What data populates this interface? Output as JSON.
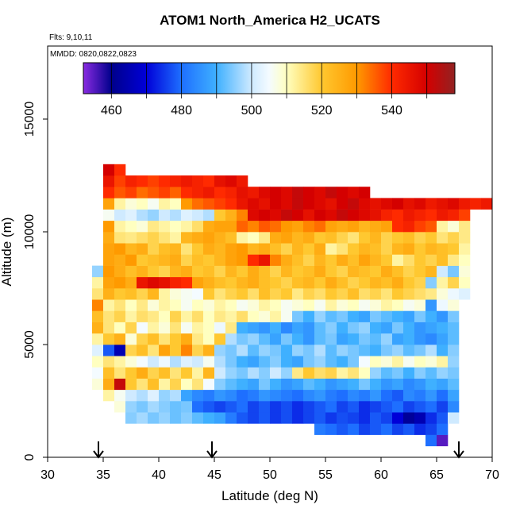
{
  "chart_data": {
    "type": "heatmap",
    "title": "ATOM1 North_America H2_UCATS",
    "annotations": [
      "Flts: 9,10,11",
      "MMDD: 0820,0822,0823"
    ],
    "x_label": "Latitude (deg N)",
    "y_label": "Altitude (m)",
    "xlim": [
      30,
      70
    ],
    "ylim": [
      0,
      18240
    ],
    "xticks": [
      30,
      35,
      40,
      45,
      50,
      55,
      60,
      65,
      70
    ],
    "yticks": [
      0,
      5000,
      10000,
      15000
    ],
    "xbins": [
      34,
      35,
      36,
      37,
      38,
      39,
      40,
      41,
      42,
      43,
      44,
      45,
      46,
      47,
      48,
      49,
      50,
      51,
      52,
      53,
      54,
      55,
      56,
      57,
      58,
      59,
      60,
      61,
      62,
      63,
      64,
      65,
      66,
      67,
      68,
      69,
      70
    ],
    "ybins": [
      500,
      1000,
      1500,
      2000,
      2500,
      3000,
      3500,
      4000,
      4500,
      5000,
      5500,
      6000,
      6500,
      7000,
      7500,
      8000,
      8500,
      9000,
      9500,
      10000,
      10500,
      11000,
      11500,
      12000,
      12500,
      13000
    ],
    "values": [
      [
        null,
        null,
        null,
        null,
        null,
        null,
        null,
        null,
        null,
        null,
        null,
        null,
        null,
        null,
        null,
        null,
        null,
        null,
        null,
        null,
        null,
        null,
        null,
        null,
        null,
        null,
        null,
        null,
        null,
        null,
        480,
        455,
        null,
        null,
        null,
        null
      ],
      [
        null,
        null,
        null,
        null,
        null,
        null,
        null,
        null,
        null,
        null,
        null,
        null,
        null,
        null,
        null,
        null,
        null,
        null,
        null,
        null,
        482,
        480,
        478,
        480,
        476,
        478,
        480,
        476,
        478,
        474,
        476,
        480,
        null,
        null,
        null,
        null
      ],
      [
        null,
        null,
        null,
        495,
        497,
        494,
        496,
        493,
        495,
        492,
        490,
        488,
        482,
        478,
        476,
        478,
        475,
        477,
        474,
        476,
        478,
        475,
        477,
        476,
        474,
        478,
        476,
        470,
        462,
        465,
        474,
        478,
        500,
        null,
        null,
        null
      ],
      [
        null,
        null,
        508,
        496,
        494,
        497,
        495,
        493,
        494,
        480,
        478,
        476,
        478,
        480,
        476,
        478,
        475,
        477,
        474,
        476,
        478,
        480,
        476,
        478,
        474,
        476,
        478,
        480,
        476,
        478,
        480,
        476,
        484,
        null,
        null,
        null
      ],
      [
        null,
        512,
        506,
        500,
        498,
        502,
        496,
        498,
        488,
        484,
        482,
        486,
        484,
        480,
        482,
        486,
        484,
        482,
        480,
        484,
        486,
        482,
        480,
        484,
        482,
        486,
        480,
        478,
        484,
        482,
        486,
        480,
        488,
        null,
        null,
        null
      ],
      [
        508,
        526,
        552,
        520,
        515,
        522,
        512,
        518,
        510,
        515,
        505,
        495,
        492,
        490,
        488,
        494,
        490,
        486,
        488,
        492,
        490,
        486,
        488,
        490,
        494,
        490,
        486,
        488,
        484,
        486,
        490,
        488,
        492,
        null,
        null,
        null
      ],
      [
        505,
        522,
        515,
        520,
        526,
        518,
        522,
        515,
        520,
        512,
        524,
        500,
        496,
        494,
        498,
        495,
        500,
        496,
        514,
        520,
        516,
        518,
        512,
        515,
        510,
        496,
        492,
        494,
        490,
        495,
        492,
        496,
        494,
        null,
        null,
        null
      ],
      [
        510,
        515,
        512,
        508,
        505,
        500,
        504,
        498,
        502,
        500,
        506,
        498,
        494,
        490,
        488,
        492,
        495,
        490,
        488,
        494,
        496,
        492,
        490,
        494,
        505,
        510,
        508,
        512,
        506,
        510,
        508,
        512,
        496,
        null,
        null,
        null
      ],
      [
        502,
        478,
        465,
        518,
        522,
        515,
        528,
        520,
        532,
        518,
        525,
        496,
        494,
        498,
        492,
        496,
        494,
        490,
        496,
        494,
        498,
        492,
        496,
        494,
        492,
        490,
        494,
        496,
        492,
        494,
        498,
        490,
        495,
        null,
        null,
        null
      ],
      [
        512,
        520,
        525,
        508,
        518,
        522,
        515,
        520,
        526,
        514,
        510,
        520,
        498,
        494,
        496,
        492,
        488,
        494,
        490,
        486,
        492,
        494,
        488,
        490,
        494,
        492,
        496,
        488,
        490,
        486,
        484,
        488,
        492,
        null,
        null,
        null
      ],
      [
        525,
        515,
        510,
        518,
        505,
        512,
        508,
        515,
        506,
        512,
        510,
        504,
        514,
        490,
        488,
        486,
        490,
        484,
        488,
        486,
        492,
        495,
        490,
        494,
        496,
        490,
        488,
        494,
        490,
        486,
        488,
        490,
        492,
        null,
        null,
        null
      ],
      [
        522,
        515,
        518,
        512,
        516,
        514,
        510,
        518,
        512,
        516,
        510,
        514,
        512,
        516,
        510,
        508,
        512,
        506,
        494,
        490,
        496,
        492,
        494,
        490,
        488,
        494,
        492,
        490,
        488,
        494,
        490,
        486,
        494,
        null,
        null,
        null
      ],
      [
        532,
        512,
        515,
        510,
        514,
        508,
        512,
        510,
        506,
        510,
        508,
        512,
        510,
        506,
        508,
        512,
        510,
        506,
        508,
        510,
        506,
        512,
        508,
        510,
        506,
        508,
        512,
        510,
        506,
        508,
        486,
        504,
        508,
        null,
        null,
        null
      ],
      [
        515,
        525,
        520,
        522,
        518,
        524,
        512,
        508,
        506,
        505,
        520,
        515,
        518,
        520,
        516,
        522,
        518,
        520,
        514,
        518,
        516,
        520,
        518,
        522,
        516,
        518,
        515,
        520,
        518,
        516,
        514,
        508,
        504,
        502,
        null,
        null
      ],
      [
        512,
        528,
        530,
        526,
        545,
        548,
        546,
        542,
        540,
        528,
        525,
        522,
        520,
        524,
        526,
        522,
        520,
        518,
        522,
        524,
        520,
        526,
        522,
        518,
        520,
        524,
        522,
        526,
        520,
        518,
        495,
        512,
        518,
        510,
        null,
        null
      ],
      [
        496,
        530,
        526,
        522,
        525,
        520,
        518,
        524,
        526,
        520,
        522,
        518,
        524,
        520,
        526,
        522,
        518,
        524,
        520,
        522,
        526,
        520,
        518,
        524,
        522,
        520,
        526,
        522,
        518,
        520,
        524,
        500,
        494,
        508,
        null,
        null
      ],
      [
        null,
        528,
        526,
        530,
        520,
        522,
        524,
        526,
        518,
        522,
        520,
        524,
        528,
        530,
        540,
        545,
        532,
        526,
        522,
        518,
        524,
        520,
        526,
        522,
        528,
        524,
        520,
        512,
        516,
        520,
        518,
        522,
        514,
        510,
        null,
        null
      ],
      [
        null,
        528,
        530,
        524,
        526,
        518,
        522,
        524,
        515,
        520,
        526,
        524,
        528,
        530,
        524,
        526,
        522,
        518,
        524,
        520,
        526,
        512,
        515,
        520,
        524,
        522,
        518,
        524,
        526,
        520,
        524,
        522,
        520,
        512,
        null,
        null
      ],
      [
        null,
        526,
        515,
        514,
        516,
        518,
        515,
        512,
        524,
        526,
        528,
        525,
        522,
        512,
        510,
        514,
        526,
        528,
        524,
        526,
        520,
        522,
        518,
        515,
        520,
        524,
        518,
        520,
        522,
        518,
        520,
        515,
        518,
        514,
        null,
        null
      ],
      [
        null,
        530,
        512,
        510,
        508,
        514,
        512,
        510,
        512,
        516,
        526,
        528,
        528,
        535,
        532,
        536,
        534,
        530,
        528,
        532,
        534,
        528,
        526,
        528,
        524,
        526,
        528,
        540,
        542,
        538,
        536,
        512,
        508,
        514,
        null,
        null
      ],
      [
        null,
        506,
        500,
        502,
        498,
        496,
        500,
        498,
        502,
        500,
        498,
        520,
        525,
        532,
        548,
        550,
        548,
        552,
        550,
        546,
        550,
        548,
        552,
        550,
        548,
        546,
        542,
        540,
        544,
        542,
        540,
        544,
        542,
        538,
        null,
        null
      ],
      [
        null,
        528,
        512,
        508,
        510,
        506,
        512,
        510,
        530,
        534,
        536,
        538,
        540,
        545,
        548,
        546,
        550,
        548,
        552,
        550,
        548,
        546,
        550,
        552,
        548,
        546,
        548,
        550,
        546,
        548,
        544,
        546,
        548,
        544,
        542,
        544
      ],
      [
        null,
        540,
        536,
        538,
        534,
        536,
        538,
        535,
        540,
        542,
        544,
        540,
        542,
        546,
        544,
        548,
        550,
        548,
        552,
        550,
        548,
        552,
        550,
        548,
        550,
        null,
        null,
        null,
        null,
        null,
        null,
        null,
        null,
        null,
        null,
        null
      ],
      [
        null,
        545,
        538,
        542,
        540,
        538,
        540,
        542,
        544,
        542,
        540,
        546,
        548,
        544,
        null,
        null,
        null,
        null,
        null,
        null,
        null,
        null,
        null,
        null,
        null,
        null,
        null,
        null,
        null,
        null,
        null,
        null,
        null,
        null,
        null,
        null
      ],
      [
        null,
        550,
        540,
        null,
        null,
        null,
        null,
        null,
        null,
        null,
        null,
        null,
        null,
        null,
        null,
        null,
        null,
        null,
        null,
        null,
        null,
        null,
        null,
        null,
        null,
        null,
        null,
        null,
        null,
        null,
        null,
        null,
        null,
        null,
        null,
        null
      ]
    ],
    "colorbar_lim": [
      452,
      558
    ],
    "colorbar_ticks": [
      460,
      480,
      500,
      520,
      540
    ],
    "colorbar_breaks": [
      460,
      470,
      480,
      490,
      500,
      510,
      520,
      530,
      540,
      550
    ],
    "colorscale": [
      [
        452,
        "#8a2be2"
      ],
      [
        460,
        "#00008b"
      ],
      [
        470,
        "#0000d8"
      ],
      [
        480,
        "#1e6fff"
      ],
      [
        490,
        "#3fb0ff"
      ],
      [
        500,
        "#cfeaff"
      ],
      [
        505,
        "#f4fbff"
      ],
      [
        510,
        "#ffffc0"
      ],
      [
        520,
        "#ffc830"
      ],
      [
        530,
        "#ff9a00"
      ],
      [
        540,
        "#ff2a00"
      ],
      [
        550,
        "#d40000"
      ],
      [
        558,
        "#922222"
      ]
    ]
  }
}
